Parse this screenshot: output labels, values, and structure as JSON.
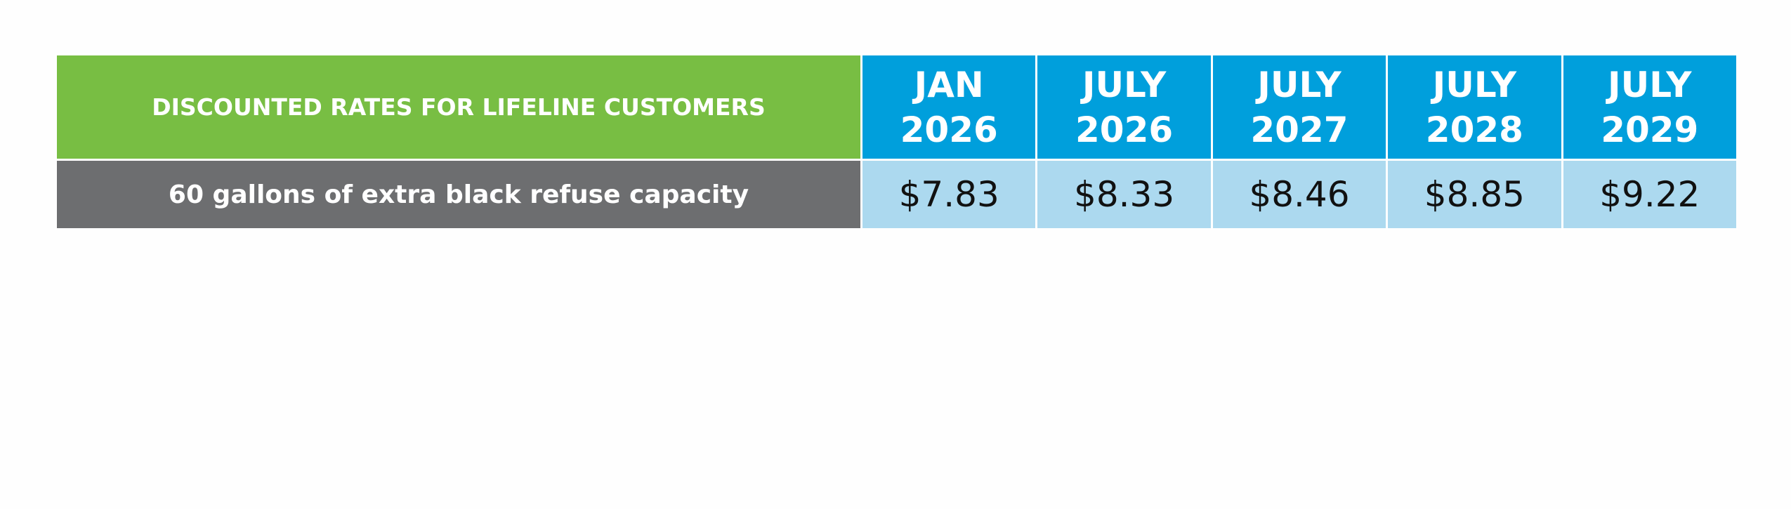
{
  "table": {
    "header": {
      "title": "DISCOUNTED RATES FOR LIFELINE CUSTOMERS",
      "columns": [
        {
          "month": "JAN",
          "year": "2026"
        },
        {
          "month": "JULY",
          "year": "2026"
        },
        {
          "month": "JULY",
          "year": "2027"
        },
        {
          "month": "JULY",
          "year": "2028"
        },
        {
          "month": "JULY",
          "year": "2029"
        }
      ]
    },
    "rows": [
      {
        "label": "60 gallons of extra black refuse capacity",
        "prices": [
          "$7.83",
          "$8.33",
          "$8.46",
          "$8.85",
          "$9.22"
        ]
      }
    ]
  }
}
